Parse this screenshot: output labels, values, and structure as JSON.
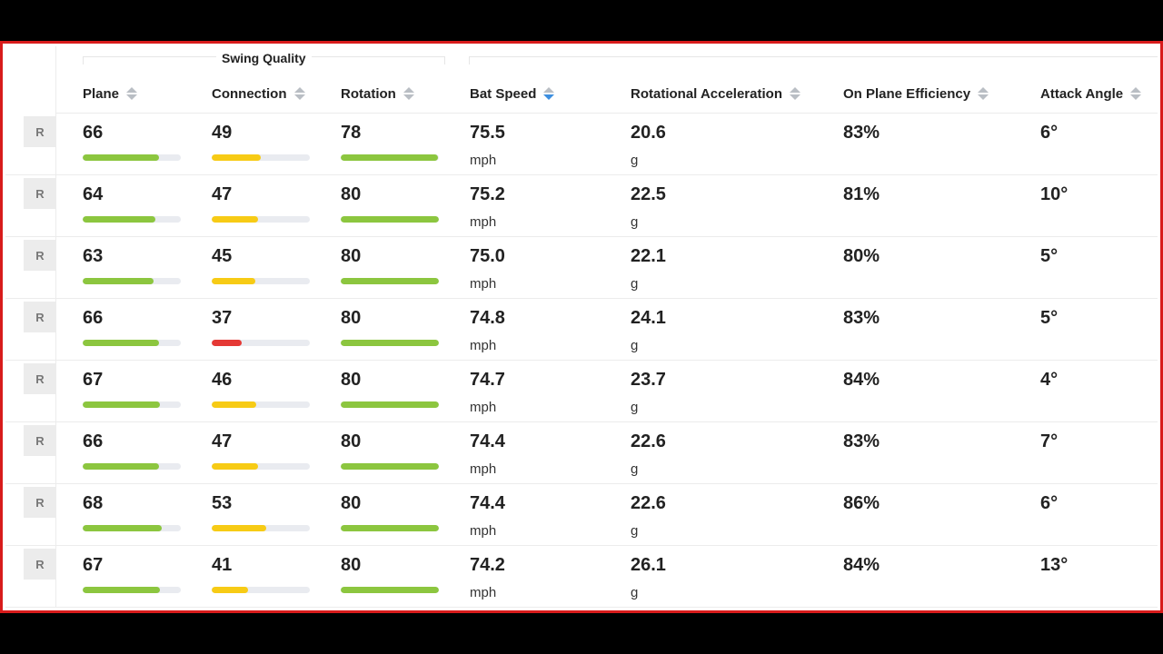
{
  "group_title": "Swing Quality",
  "columns": [
    {
      "label": "Plane",
      "sort": "none"
    },
    {
      "label": "Connection",
      "sort": "none"
    },
    {
      "label": "Rotation",
      "sort": "none"
    },
    {
      "label": "Bat Speed",
      "sort": "descending"
    },
    {
      "label": "Rotational Acceleration",
      "sort": "none"
    },
    {
      "label": "On Plane Efficiency",
      "sort": "none"
    },
    {
      "label": "Attack Angle",
      "sort": "none"
    }
  ],
  "colors": {
    "good": "#8cc63f",
    "medium": "#f7cb15",
    "poor": "#e53935",
    "track": "#e9ebf0",
    "sort_active": "#3d8fe0"
  },
  "units": {
    "bat_speed": "mph",
    "rotational_acceleration": "g"
  },
  "rows": [
    {
      "hand": "R",
      "plane": "66",
      "plane_pct": 0.78,
      "connection": "49",
      "connection_pct": 0.5,
      "connection_level": "medium",
      "rotation": "78",
      "rotation_pct": 0.99,
      "bat_speed": "75.5",
      "rot_accel": "20.6",
      "efficiency": "83%",
      "attack_angle": "6°"
    },
    {
      "hand": "R",
      "plane": "64",
      "plane_pct": 0.74,
      "connection": "47",
      "connection_pct": 0.47,
      "connection_level": "medium",
      "rotation": "80",
      "rotation_pct": 1.0,
      "bat_speed": "75.2",
      "rot_accel": "22.5",
      "efficiency": "81%",
      "attack_angle": "10°"
    },
    {
      "hand": "R",
      "plane": "63",
      "plane_pct": 0.72,
      "connection": "45",
      "connection_pct": 0.44,
      "connection_level": "medium",
      "rotation": "80",
      "rotation_pct": 1.0,
      "bat_speed": "75.0",
      "rot_accel": "22.1",
      "efficiency": "80%",
      "attack_angle": "5°"
    },
    {
      "hand": "R",
      "plane": "66",
      "plane_pct": 0.78,
      "connection": "37",
      "connection_pct": 0.31,
      "connection_level": "poor",
      "rotation": "80",
      "rotation_pct": 1.0,
      "bat_speed": "74.8",
      "rot_accel": "24.1",
      "efficiency": "83%",
      "attack_angle": "5°"
    },
    {
      "hand": "R",
      "plane": "67",
      "plane_pct": 0.79,
      "connection": "46",
      "connection_pct": 0.45,
      "connection_level": "medium",
      "rotation": "80",
      "rotation_pct": 1.0,
      "bat_speed": "74.7",
      "rot_accel": "23.7",
      "efficiency": "84%",
      "attack_angle": "4°"
    },
    {
      "hand": "R",
      "plane": "66",
      "plane_pct": 0.78,
      "connection": "47",
      "connection_pct": 0.47,
      "connection_level": "medium",
      "rotation": "80",
      "rotation_pct": 1.0,
      "bat_speed": "74.4",
      "rot_accel": "22.6",
      "efficiency": "83%",
      "attack_angle": "7°"
    },
    {
      "hand": "R",
      "plane": "68",
      "plane_pct": 0.81,
      "connection": "53",
      "connection_pct": 0.56,
      "connection_level": "medium",
      "rotation": "80",
      "rotation_pct": 1.0,
      "bat_speed": "74.4",
      "rot_accel": "22.6",
      "efficiency": "86%",
      "attack_angle": "6°"
    },
    {
      "hand": "R",
      "plane": "67",
      "plane_pct": 0.79,
      "connection": "41",
      "connection_pct": 0.37,
      "connection_level": "medium",
      "rotation": "80",
      "rotation_pct": 1.0,
      "bat_speed": "74.2",
      "rot_accel": "26.1",
      "efficiency": "84%",
      "attack_angle": "13°"
    }
  ]
}
